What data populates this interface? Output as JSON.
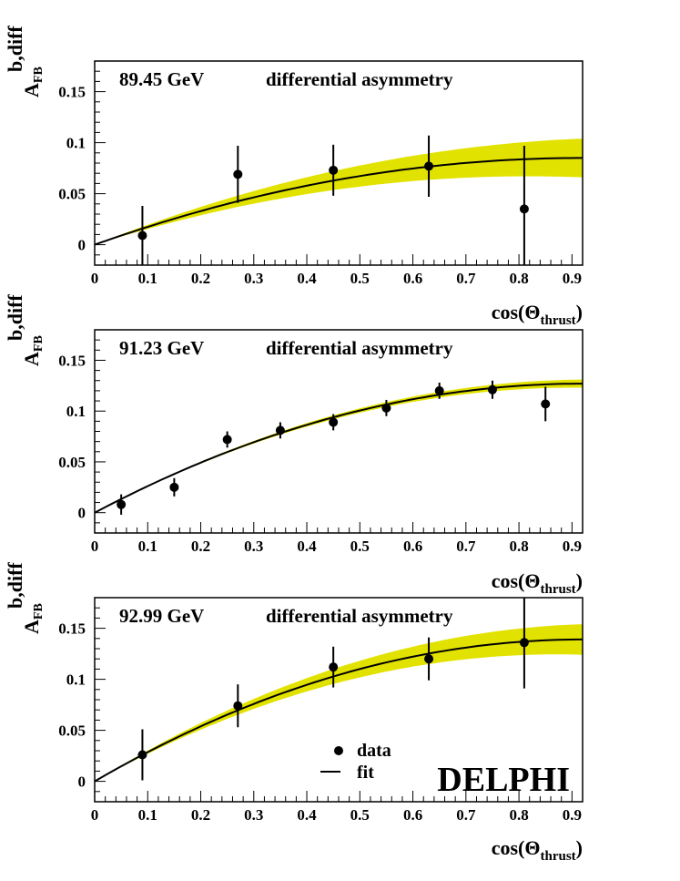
{
  "chart_data": [
    {
      "type": "line",
      "energy_label": "89.45 GeV",
      "title": "differential asymmetry",
      "xlabel": "cos(Θ",
      "xlabel_sub": "thrust",
      "xlabel_close": ")",
      "ylabel_main": "A",
      "ylabel_sub": "FB",
      "ylabel_sup": "b,diff",
      "xlim": [
        0,
        0.92
      ],
      "ylim": [
        -0.02,
        0.18
      ],
      "xticks": [
        "0",
        "0.1",
        "0.2",
        "0.3",
        "0.4",
        "0.5",
        "0.6",
        "0.7",
        "0.8",
        "0.9"
      ],
      "yticks": [
        "0",
        "0.05",
        "0.1",
        "0.15"
      ],
      "fit_amplitude": 0.085,
      "band_halfwidth": 0.019,
      "points": [
        {
          "x": 0.09,
          "y": 0.009,
          "err": 0.029
        },
        {
          "x": 0.27,
          "y": 0.069,
          "err": 0.028
        },
        {
          "x": 0.45,
          "y": 0.073,
          "err": 0.025
        },
        {
          "x": 0.63,
          "y": 0.077,
          "err": 0.03
        },
        {
          "x": 0.81,
          "y": 0.035,
          "err": 0.062
        }
      ]
    },
    {
      "type": "line",
      "energy_label": "91.23 GeV",
      "title": "differential asymmetry",
      "xlabel": "cos(Θ",
      "xlabel_sub": "thrust",
      "xlabel_close": ")",
      "ylabel_main": "A",
      "ylabel_sub": "FB",
      "ylabel_sup": "b,diff",
      "xlim": [
        0,
        0.92
      ],
      "ylim": [
        -0.02,
        0.18
      ],
      "xticks": [
        "0",
        "0.1",
        "0.2",
        "0.3",
        "0.4",
        "0.5",
        "0.6",
        "0.7",
        "0.8",
        "0.9"
      ],
      "yticks": [
        "0",
        "0.05",
        "0.1",
        "0.15"
      ],
      "fit_amplitude": 0.127,
      "band_halfwidth": 0.004,
      "points": [
        {
          "x": 0.05,
          "y": 0.008,
          "err": 0.01
        },
        {
          "x": 0.15,
          "y": 0.025,
          "err": 0.009
        },
        {
          "x": 0.25,
          "y": 0.072,
          "err": 0.008
        },
        {
          "x": 0.35,
          "y": 0.081,
          "err": 0.008
        },
        {
          "x": 0.45,
          "y": 0.089,
          "err": 0.008
        },
        {
          "x": 0.55,
          "y": 0.103,
          "err": 0.008
        },
        {
          "x": 0.65,
          "y": 0.12,
          "err": 0.008
        },
        {
          "x": 0.75,
          "y": 0.121,
          "err": 0.009
        },
        {
          "x": 0.85,
          "y": 0.107,
          "err": 0.017
        }
      ]
    },
    {
      "type": "line",
      "energy_label": "92.99 GeV",
      "title": "differential asymmetry",
      "xlabel": "cos(Θ",
      "xlabel_sub": "thrust",
      "xlabel_close": ")",
      "ylabel_main": "A",
      "ylabel_sub": "FB",
      "ylabel_sup": "b,diff",
      "xlim": [
        0,
        0.92
      ],
      "ylim": [
        -0.02,
        0.18
      ],
      "xticks": [
        "0",
        "0.1",
        "0.2",
        "0.3",
        "0.4",
        "0.5",
        "0.6",
        "0.7",
        "0.8",
        "0.9"
      ],
      "yticks": [
        "0",
        "0.05",
        "0.1",
        "0.15"
      ],
      "fit_amplitude": 0.139,
      "band_halfwidth": 0.015,
      "points": [
        {
          "x": 0.09,
          "y": 0.026,
          "err": 0.025
        },
        {
          "x": 0.27,
          "y": 0.074,
          "err": 0.021
        },
        {
          "x": 0.45,
          "y": 0.112,
          "err": 0.02
        },
        {
          "x": 0.63,
          "y": 0.12,
          "err": 0.021
        },
        {
          "x": 0.81,
          "y": 0.136,
          "err": 0.045
        }
      ],
      "legend": {
        "placement": "bottom-right",
        "items": [
          {
            "marker": "dot",
            "label": "data"
          },
          {
            "marker": "line",
            "label": "fit"
          }
        ]
      },
      "logo": "DELPHI"
    }
  ],
  "colors": {
    "band": "#e2e200",
    "line": "#000000",
    "marker": "#000000"
  }
}
